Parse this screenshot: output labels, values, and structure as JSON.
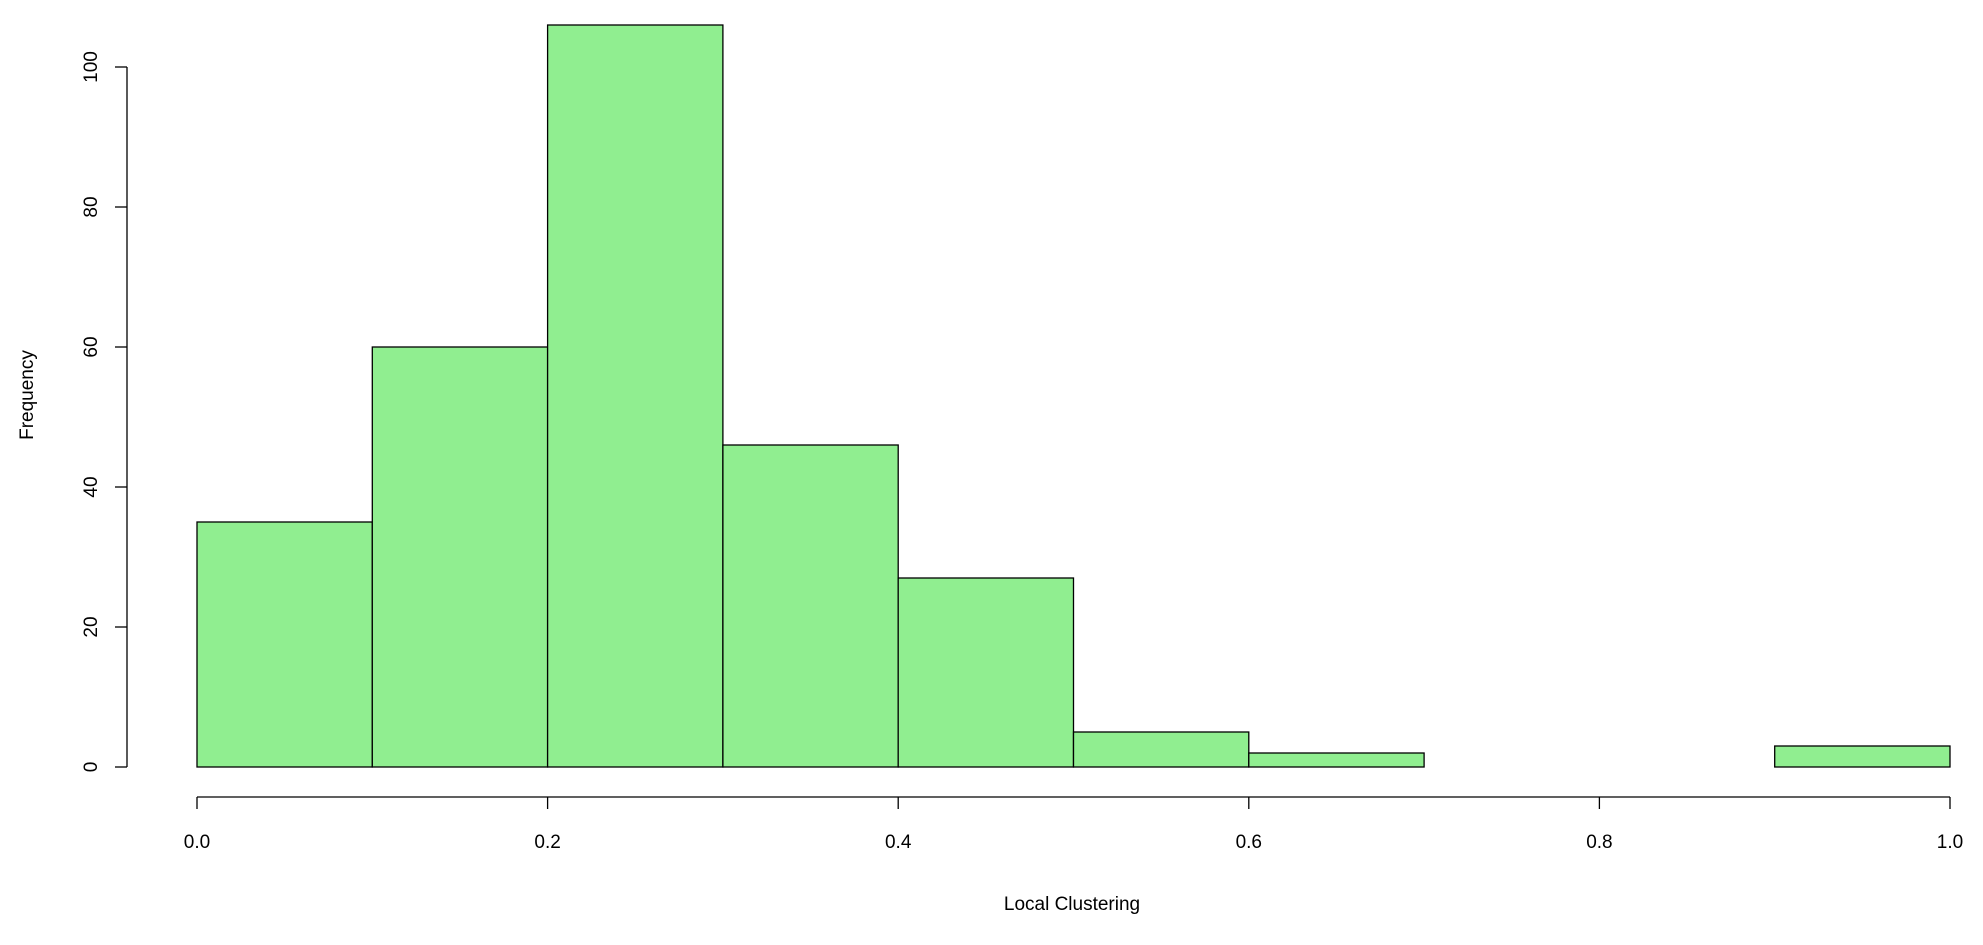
{
  "chart_data": {
    "type": "bar",
    "subtype": "histogram",
    "title": "",
    "xlabel": "Local Clustering",
    "ylabel": "Frequency",
    "bins": [
      {
        "start": 0.0,
        "end": 0.1,
        "count": 35
      },
      {
        "start": 0.1,
        "end": 0.2,
        "count": 60
      },
      {
        "start": 0.2,
        "end": 0.3,
        "count": 106
      },
      {
        "start": 0.3,
        "end": 0.4,
        "count": 46
      },
      {
        "start": 0.4,
        "end": 0.5,
        "count": 27
      },
      {
        "start": 0.5,
        "end": 0.6,
        "count": 5
      },
      {
        "start": 0.6,
        "end": 0.7,
        "count": 2
      },
      {
        "start": 0.7,
        "end": 0.8,
        "count": 0
      },
      {
        "start": 0.8,
        "end": 0.9,
        "count": 0
      },
      {
        "start": 0.9,
        "end": 1.0,
        "count": 3
      }
    ],
    "xlim": [
      0.0,
      1.0
    ],
    "ylim": [
      0,
      106
    ],
    "x_ticks": [
      "0.0",
      "0.2",
      "0.4",
      "0.6",
      "0.8",
      "1.0"
    ],
    "y_ticks": [
      "0",
      "20",
      "40",
      "60",
      "80",
      "100"
    ],
    "bar_color": "#90EE90",
    "edge_color": "#000000",
    "grid": false,
    "legend": "none"
  }
}
